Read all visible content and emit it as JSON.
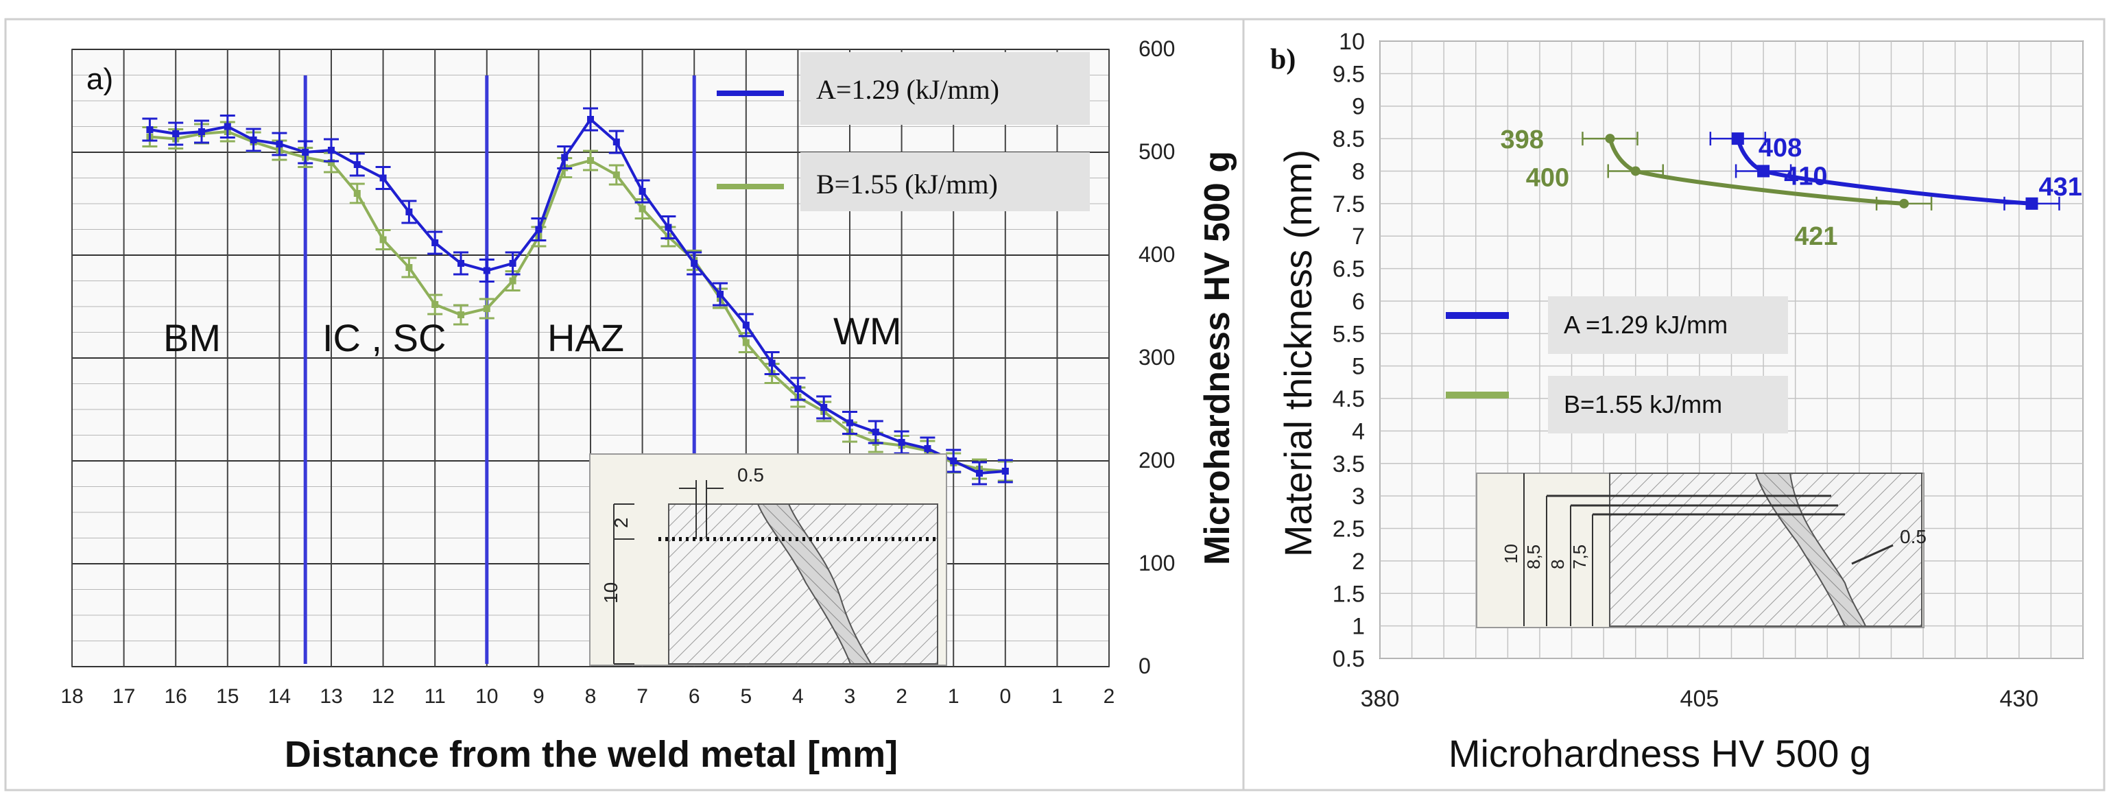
{
  "chart_data": [
    {
      "panel": "a)",
      "type": "line",
      "xlabel": "Distance from the weld metal [mm]",
      "ylabel": "Microhardness HV 500 g",
      "xlim": [
        18,
        -2
      ],
      "ylim": [
        0,
        600
      ],
      "x_ticks": [
        "18",
        "17",
        "16",
        "15",
        "14",
        "13",
        "12",
        "11",
        "10",
        "9",
        "8",
        "7",
        "6",
        "5",
        "4",
        "3",
        "2",
        "1",
        "0",
        "1",
        "2"
      ],
      "y_ticks": [
        "0",
        "100",
        "200",
        "300",
        "400",
        "500",
        "600"
      ],
      "grid": true,
      "region_labels": [
        "BM",
        "IC , SC",
        "HAZ",
        "WM"
      ],
      "vertical_lines_x": [
        13.5,
        10,
        6
      ],
      "series": [
        {
          "name": "A=1.29 (kJ/mm)",
          "color": "#1f1fd0",
          "x": [
            16.5,
            16,
            15.5,
            15,
            14.5,
            14,
            13.5,
            13,
            12.5,
            12,
            11.5,
            11,
            10.5,
            10,
            9.5,
            9,
            8.5,
            8,
            7.5,
            7,
            6.5,
            6,
            5.5,
            5,
            4.5,
            4,
            3.5,
            3,
            2.5,
            2,
            1.5,
            1,
            0.5,
            0
          ],
          "y": [
            522,
            518,
            520,
            525,
            512,
            508,
            500,
            502,
            488,
            475,
            442,
            412,
            392,
            385,
            392,
            425,
            495,
            532,
            510,
            462,
            427,
            392,
            362,
            332,
            295,
            270,
            252,
            237,
            228,
            218,
            212,
            200,
            188,
            190
          ]
        },
        {
          "name": "B=1.55 (kJ/mm)",
          "color": "#8fb05a",
          "x": [
            16.5,
            16,
            15.5,
            15,
            14.5,
            14,
            13.5,
            13,
            12.5,
            12,
            11.5,
            11,
            10.5,
            10,
            9.5,
            9,
            8.5,
            8,
            7.5,
            7,
            6.5,
            6,
            5.5,
            5,
            4.5,
            4,
            3.5,
            3,
            2.5,
            2,
            1.5,
            1,
            0.5,
            0
          ],
          "y": [
            515,
            513,
            518,
            520,
            510,
            502,
            495,
            490,
            460,
            415,
            388,
            352,
            342,
            348,
            375,
            418,
            485,
            492,
            478,
            445,
            418,
            395,
            358,
            315,
            285,
            262,
            248,
            228,
            218,
            215,
            210,
            198,
            192,
            190
          ]
        }
      ],
      "inset_labels": [
        "0.5",
        "2",
        "10"
      ]
    },
    {
      "panel": "b)",
      "type": "line",
      "xlabel": "Microhardness HV 500 g",
      "ylabel": "Material thickness (mm)",
      "xlim": [
        380,
        435
      ],
      "ylim": [
        0.5,
        10
      ],
      "x_ticks": [
        "380",
        "405",
        "430"
      ],
      "y_ticks": [
        "0.5",
        "1",
        "1.5",
        "2",
        "2.5",
        "3",
        "3.5",
        "4",
        "4.5",
        "5",
        "5.5",
        "6",
        "6.5",
        "7",
        "7.5",
        "8",
        "8.5",
        "9",
        "9.5",
        "10"
      ],
      "grid": true,
      "series": [
        {
          "name": "A =1.29 kJ/mm",
          "color": "#1f1fd0",
          "points": [
            {
              "x": 408,
              "y": 8.5
            },
            {
              "x": 410,
              "y": 8
            },
            {
              "x": 431,
              "y": 7.5
            }
          ],
          "labels": [
            "408",
            "410",
            "431"
          ]
        },
        {
          "name": "B=1.55 kJ/mm",
          "color": "#6e8c3e",
          "points": [
            {
              "x": 398,
              "y": 8.5
            },
            {
              "x": 400,
              "y": 8
            },
            {
              "x": 421,
              "y": 7.5
            }
          ],
          "labels": [
            "398",
            "400",
            "421"
          ]
        }
      ],
      "inset_labels": [
        "10",
        "8,5",
        "8",
        "7,5",
        "0.5"
      ]
    }
  ]
}
